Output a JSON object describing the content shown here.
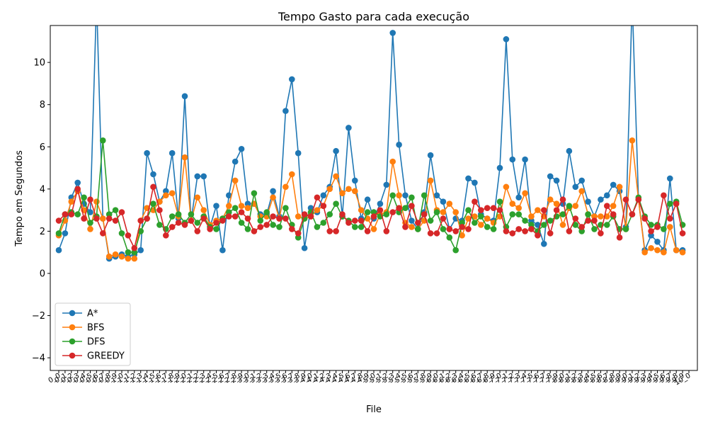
{
  "chart_data": {
    "type": "line",
    "title": "Tempo Gasto para cada execução",
    "xlabel": "File",
    "ylabel": "Tempo em Segundos",
    "ylim": [
      -4.6,
      11.75
    ],
    "yticks": [
      -4,
      -2,
      0,
      2,
      4,
      6,
      8,
      10
    ],
    "grid": false,
    "legend_position": "lower-left",
    "categories": [
      "0_0",
      "0_1",
      "0_2",
      "0_3",
      "0_4",
      "0_5",
      "0_6",
      "0_7",
      "0_8",
      "0_9",
      "1_0",
      "1_1",
      "1_2",
      "1_3",
      "1_4",
      "1_5",
      "1_6",
      "1_7",
      "1_8",
      "1_9",
      "2_0",
      "2_1",
      "2_2",
      "2_3",
      "2_4",
      "2_5",
      "2_6",
      "2_7",
      "2_8",
      "2_9",
      "3_0",
      "3_1",
      "3_2",
      "3_3",
      "3_4",
      "3_5",
      "3_6",
      "3_7",
      "3_8",
      "3_9",
      "4_0",
      "4_1",
      "4_2",
      "4_3",
      "4_4",
      "4_5",
      "4_6",
      "4_7",
      "4_8",
      "4_9",
      "5_0",
      "5_1",
      "5_2",
      "5_3",
      "5_4",
      "5_5",
      "5_6",
      "5_7",
      "5_8",
      "5_9",
      "6_0",
      "6_1",
      "6_2",
      "6_3",
      "6_4",
      "6_5",
      "6_6",
      "6_7",
      "6_8",
      "6_9",
      "7_0",
      "7_1",
      "7_2",
      "7_3",
      "7_4",
      "7_5",
      "7_6",
      "7_7",
      "7_8",
      "7_9",
      "8_0",
      "8_1",
      "8_2",
      "8_3",
      "8_4",
      "8_5",
      "8_6",
      "8_7",
      "8_8",
      "8_9",
      "9_0",
      "9_1",
      "9_2",
      "9_3",
      "9_4",
      "9_5",
      "9_6",
      "9_7",
      "9_8",
      "9_9",
      "10_0"
    ],
    "series": [
      {
        "name": "A*",
        "color": "#1f77b4",
        "values": [
          1.1,
          1.9,
          3.6,
          4.3,
          3.3,
          2.9,
          13.0,
          2.6,
          0.7,
          0.8,
          0.9,
          0.8,
          0.9,
          1.1,
          5.7,
          4.7,
          3.4,
          3.9,
          5.7,
          2.6,
          8.4,
          2.5,
          4.6,
          4.6,
          2.2,
          3.2,
          1.1,
          3.7,
          5.3,
          5.9,
          3.3,
          3.3,
          2.8,
          2.8,
          3.9,
          2.7,
          7.7,
          9.2,
          5.7,
          1.2,
          3.1,
          2.9,
          3.7,
          4.1,
          5.8,
          2.7,
          6.9,
          4.4,
          2.6,
          3.5,
          2.6,
          3.3,
          4.2,
          11.4,
          6.1,
          3.7,
          2.5,
          2.1,
          2.9,
          5.6,
          3.7,
          3.4,
          2.1,
          2.6,
          2.5,
          4.5,
          4.3,
          2.8,
          2.6,
          2.5,
          5.0,
          11.1,
          5.4,
          3.6,
          5.4,
          2.5,
          2.3,
          1.4,
          4.6,
          4.4,
          3.3,
          5.8,
          4.1,
          4.4,
          3.4,
          2.7,
          3.5,
          3.7,
          4.2,
          3.9,
          2.2,
          13.0,
          3.5,
          1.1,
          1.8,
          1.5,
          1.1,
          4.5,
          1.1,
          1.1,
          null
        ]
      },
      {
        "name": "BFS",
        "color": "#ff7f0e",
        "values": [
          1.8,
          2.5,
          3.4,
          3.9,
          3.0,
          2.1,
          3.4,
          2.6,
          0.8,
          0.9,
          0.8,
          0.7,
          0.7,
          2.5,
          3.1,
          3.0,
          3.4,
          3.7,
          3.8,
          2.7,
          5.5,
          2.5,
          3.6,
          3.0,
          2.3,
          2.5,
          2.6,
          3.2,
          4.4,
          3.2,
          3.1,
          3.3,
          2.7,
          2.7,
          3.6,
          2.6,
          4.1,
          4.7,
          2.7,
          2.6,
          2.7,
          3.0,
          3.2,
          4.0,
          4.6,
          3.8,
          4.0,
          3.9,
          3.0,
          2.6,
          2.1,
          2.8,
          2.9,
          5.3,
          3.7,
          2.4,
          2.2,
          2.1,
          2.5,
          4.4,
          3.0,
          2.9,
          3.3,
          2.9,
          1.8,
          2.6,
          2.7,
          2.3,
          2.6,
          2.4,
          2.7,
          4.1,
          3.3,
          3.1,
          3.8,
          2.7,
          3.0,
          2.7,
          3.5,
          3.3,
          2.3,
          3.1,
          3.2,
          3.9,
          2.8,
          2.7,
          2.7,
          2.7,
          3.2,
          4.1,
          2.1,
          6.3,
          3.5,
          1.0,
          1.2,
          1.1,
          1.0,
          2.2,
          1.1,
          1.0,
          null
        ]
      },
      {
        "name": "DFS",
        "color": "#2ca02c",
        "values": [
          1.9,
          2.8,
          2.9,
          2.8,
          3.6,
          2.4,
          2.7,
          6.3,
          2.8,
          3.0,
          1.9,
          1.0,
          1.0,
          2.0,
          2.6,
          3.3,
          2.3,
          2.1,
          2.7,
          2.8,
          2.4,
          2.8,
          2.4,
          2.7,
          2.2,
          2.1,
          2.6,
          2.9,
          3.1,
          2.4,
          2.1,
          3.8,
          2.5,
          2.9,
          2.3,
          2.2,
          3.1,
          2.3,
          1.7,
          2.6,
          2.9,
          2.2,
          2.4,
          2.8,
          3.3,
          2.7,
          2.5,
          2.2,
          2.2,
          2.9,
          2.9,
          2.7,
          2.8,
          3.7,
          2.9,
          3.1,
          3.6,
          2.1,
          3.7,
          2.5,
          2.9,
          2.1,
          1.7,
          1.1,
          2.4,
          3.0,
          2.4,
          2.7,
          2.2,
          2.1,
          3.4,
          2.2,
          2.8,
          2.8,
          2.5,
          2.3,
          2.0,
          2.3,
          2.5,
          2.7,
          2.8,
          3.2,
          2.3,
          2.0,
          2.8,
          2.1,
          2.3,
          2.3,
          2.7,
          2.1,
          2.1,
          2.8,
          3.6,
          2.7,
          2.3,
          2.3,
          2.1,
          3.3,
          3.4,
          2.3,
          null
        ]
      },
      {
        "name": "GREEDY",
        "color": "#d62728",
        "values": [
          2.5,
          2.8,
          2.8,
          4.0,
          2.6,
          3.5,
          2.6,
          1.9,
          2.6,
          2.5,
          2.9,
          1.8,
          1.2,
          2.5,
          2.6,
          4.1,
          3.0,
          1.8,
          2.2,
          2.4,
          2.3,
          2.5,
          2.0,
          2.6,
          2.1,
          2.4,
          2.5,
          2.7,
          2.7,
          2.9,
          2.6,
          2.0,
          2.2,
          2.3,
          2.7,
          2.6,
          2.6,
          2.1,
          1.9,
          2.8,
          2.7,
          3.6,
          3.2,
          2.0,
          2.0,
          2.8,
          2.4,
          2.5,
          2.5,
          2.0,
          2.7,
          3.0,
          2.0,
          2.9,
          3.1,
          2.2,
          3.2,
          2.4,
          2.8,
          1.9,
          1.9,
          2.6,
          2.1,
          2.0,
          2.2,
          2.1,
          3.4,
          3.0,
          3.1,
          3.1,
          3.0,
          2.0,
          1.9,
          2.1,
          2.0,
          2.1,
          1.8,
          3.0,
          1.9,
          3.0,
          3.5,
          2.0,
          2.6,
          2.2,
          2.5,
          2.5,
          1.9,
          3.2,
          2.8,
          1.7,
          3.5,
          2.8,
          3.5,
          2.6,
          2.0,
          2.2,
          3.7,
          2.6,
          3.3,
          1.9,
          null
        ]
      }
    ]
  }
}
